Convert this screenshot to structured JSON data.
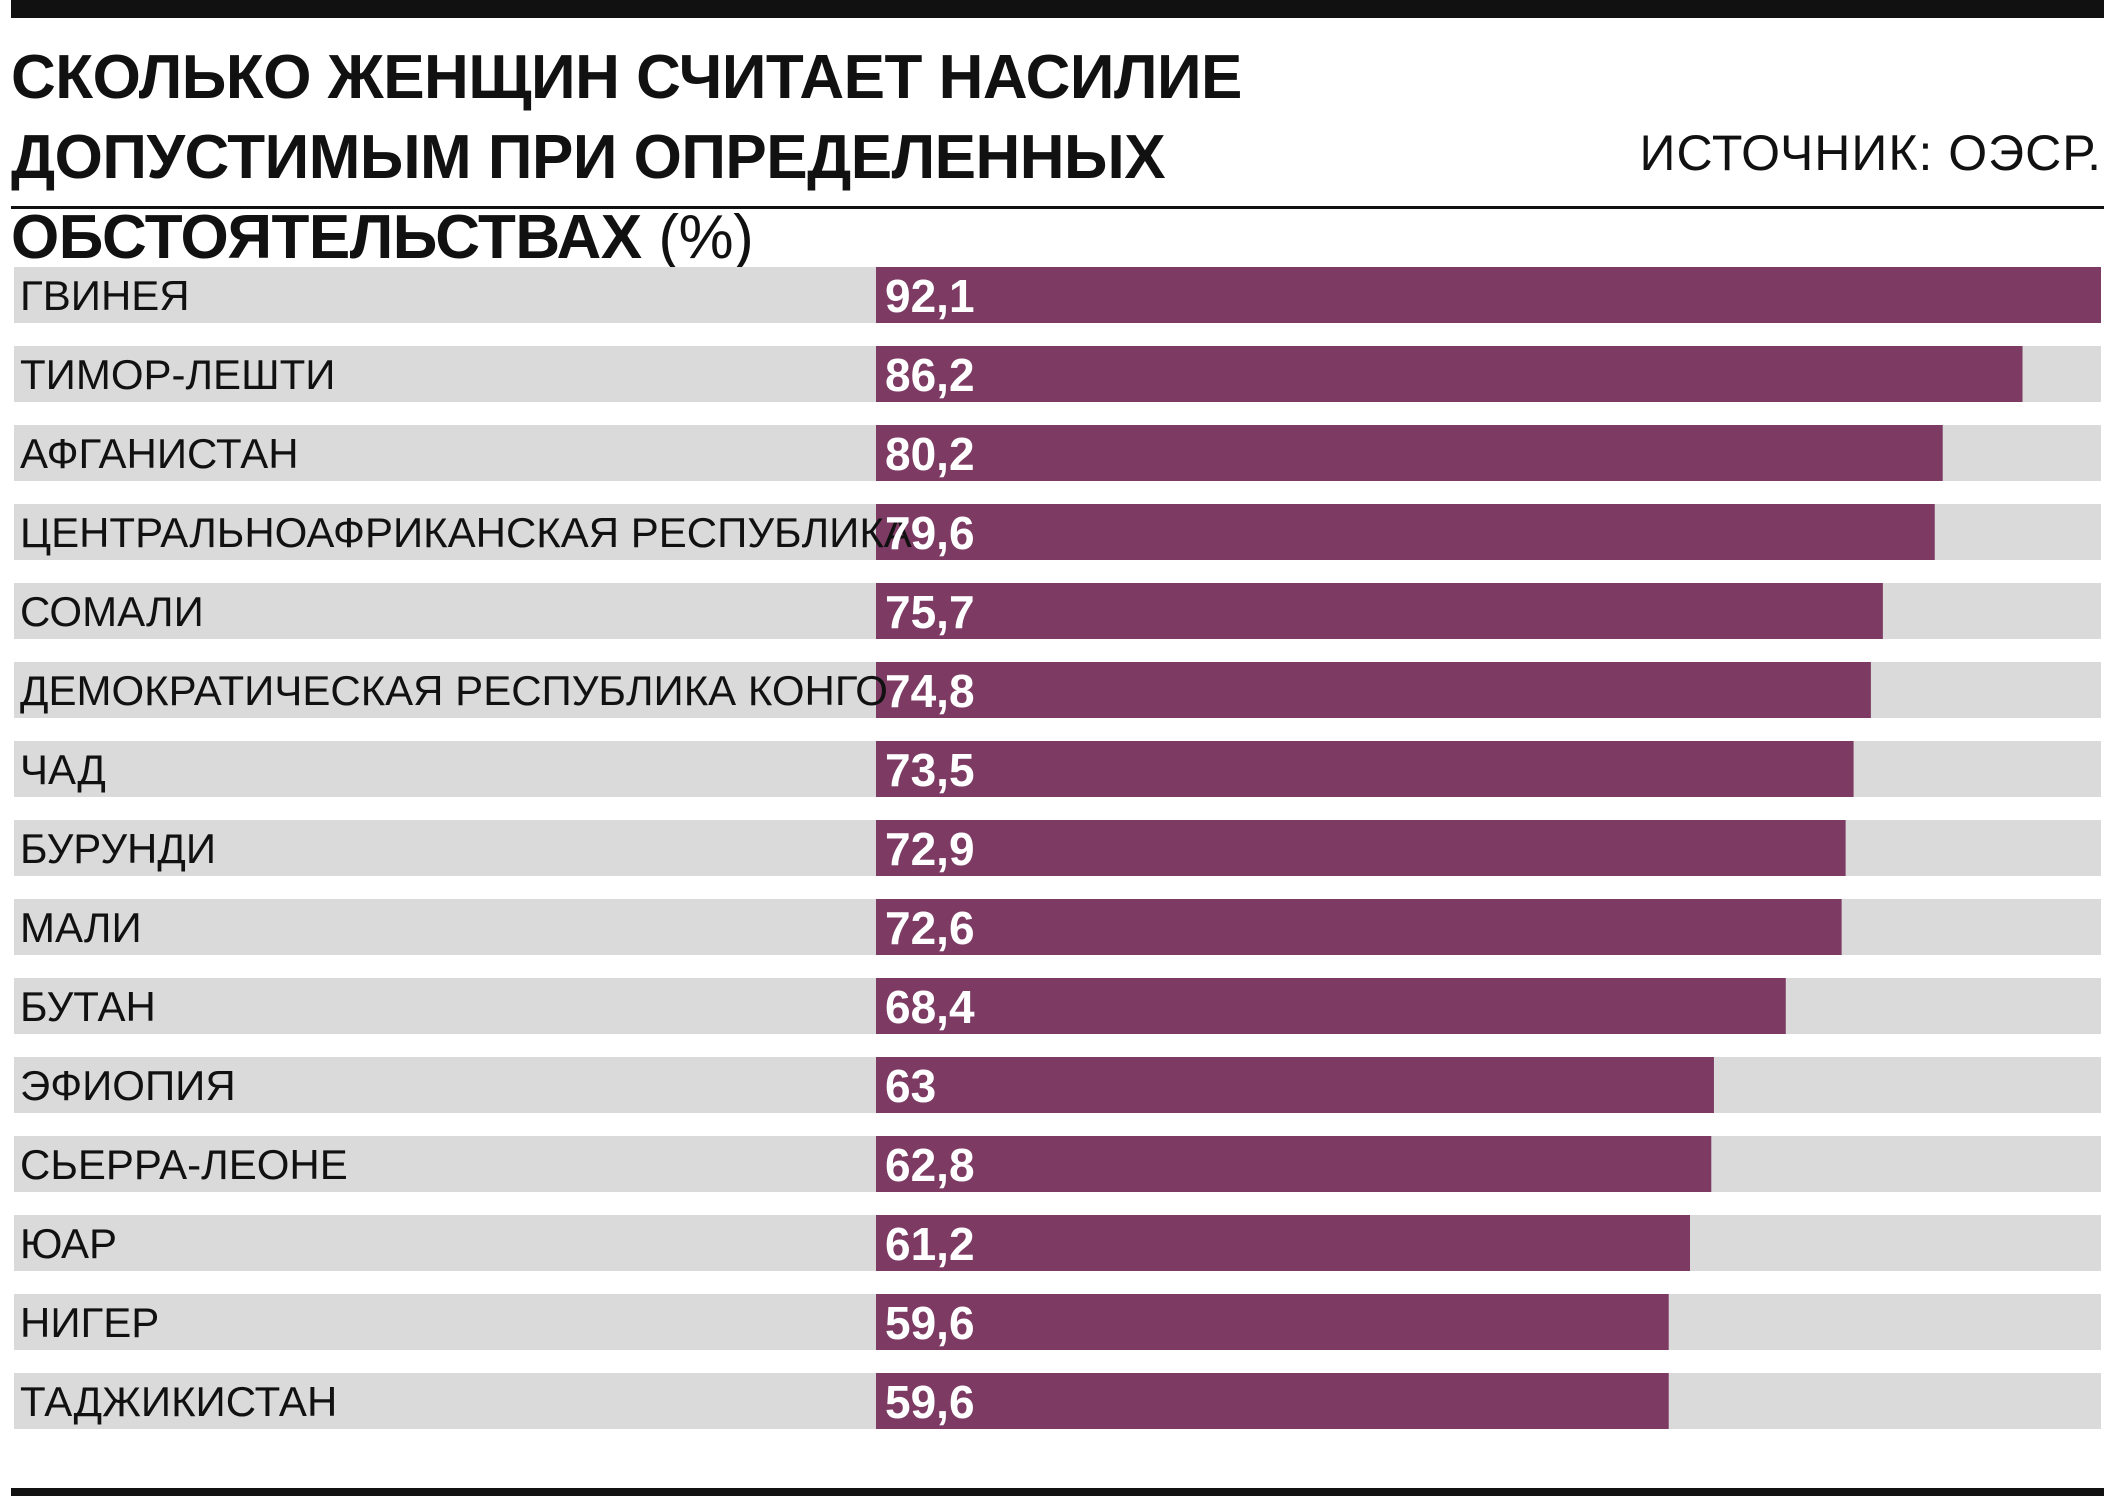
{
  "header": {
    "title": "СКОЛЬКО ЖЕНЩИН СЧИТАЕТ НАСИЛИЕ ДОПУСТИМЫМ ПРИ ОПРЕДЕЛЕННЫХ ОБСТОЯТЕЛЬСТВАХ",
    "unit": "(%)",
    "source": "ИСТОЧНИК: ОЭСР."
  },
  "colors": {
    "bar": "#7d3b64",
    "track": "#dadada",
    "text": "#111111",
    "value_text": "#ffffff"
  },
  "chart_data": {
    "type": "bar",
    "orientation": "horizontal",
    "title": "СКОЛЬКО ЖЕНЩИН СЧИТАЕТ НАСИЛИЕ ДОПУСТИМЫМ ПРИ ОПРЕДЕЛЕННЫХ ОБСТОЯТЕЛЬСТВАХ",
    "unit": "(%)",
    "categories": [
      "ГВИНЕЯ",
      "ТИМОР-ЛЕШТИ",
      "АФГАНИСТАН",
      "ЦЕНТРАЛЬНОАФРИКАНСКАЯ РЕСПУБЛИКА",
      "СОМАЛИ",
      "ДЕМОКРАТИЧЕСКАЯ РЕСПУБЛИКА КОНГО",
      "ЧАД",
      "БУРУНДИ",
      "МАЛИ",
      "БУТАН",
      "ЭФИОПИЯ",
      "СЬЕРРА-ЛЕОНЕ",
      "ЮАР",
      "НИГЕР",
      "ТАДЖИКИСТАН"
    ],
    "values": [
      92.1,
      86.2,
      80.2,
      79.6,
      75.7,
      74.8,
      73.5,
      72.9,
      72.6,
      68.4,
      63,
      62.8,
      61.2,
      59.6,
      59.6
    ],
    "value_labels": [
      "92,1",
      "86,2",
      "80,2",
      "79,6",
      "75,7",
      "74,8",
      "73,5",
      "72,9",
      "72,6",
      "68,4",
      "63",
      "62,8",
      "61,2",
      "59,6",
      "59,6"
    ],
    "xlim": [
      0,
      92.1
    ],
    "grid": false,
    "legend": "none"
  }
}
